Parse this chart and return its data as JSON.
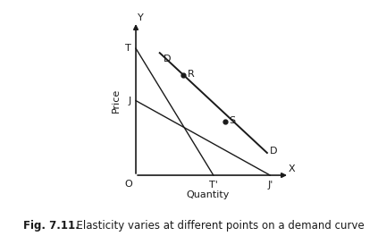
{
  "bg_color": "#ffffff",
  "line_color": "#1a1a1a",
  "fig_width": 4.32,
  "fig_height": 2.64,
  "dpi": 100,
  "caption_bold": "Fig. 7.11.",
  "caption_normal": "  Elasticity varies at different points on a demand curve",
  "caption_fontsize": 8.5,
  "axis_label_price": "Price",
  "axis_label_quantity": "Quantity",
  "T_y": 8.5,
  "J_y": 5.0,
  "T_prime_x": 5.2,
  "J_prime_x": 9.0,
  "demand_start_x": 1.6,
  "demand_start_y": 8.2,
  "demand_end_x": 8.8,
  "demand_end_y": 1.5,
  "R_x": 3.2,
  "R_y": 6.7,
  "S_x": 6.0,
  "S_y": 3.6,
  "tangent_R_x1": 0,
  "tangent_R_y1": 8.5,
  "tangent_R_x2": 5.2,
  "tangent_R_y2": 0,
  "tangent_S_x1": 0,
  "tangent_S_y1": 5.0,
  "tangent_S_x2": 9.0,
  "tangent_S_y2": 0,
  "label_fontsize": 8.0,
  "point_size": 3.5,
  "xlim_min": -1.8,
  "xlim_max": 10.5,
  "ylim_min": -1.5,
  "ylim_max": 10.5
}
